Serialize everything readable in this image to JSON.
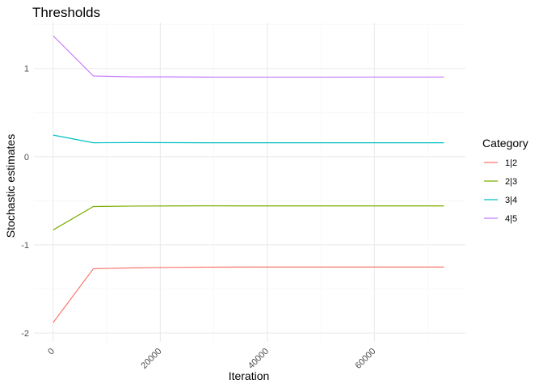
{
  "chart_data": {
    "type": "line",
    "title": "Thresholds",
    "xlabel": "Iteration",
    "ylabel": "Stochastic estimates",
    "xlim": [
      -3600,
      77000
    ],
    "ylim": [
      -2.1,
      1.52
    ],
    "x_ticks": [
      0,
      20000,
      40000,
      60000
    ],
    "x_minor_ticks": [
      10000,
      30000,
      50000,
      70000
    ],
    "y_ticks": [
      -2,
      -1,
      0,
      1
    ],
    "y_minor_ticks": [
      -1.5,
      -0.5,
      0.5,
      1.5
    ],
    "x_tick_labels": [
      "0",
      "20000",
      "40000",
      "60000"
    ],
    "y_tick_labels": [
      "-2",
      "-1",
      "0",
      "1"
    ],
    "grid": true,
    "legend": {
      "title": "Category",
      "position": "right"
    },
    "x": [
      0,
      7500,
      15000,
      22500,
      30000,
      37500,
      45000,
      52500,
      60000,
      67500,
      73000
    ],
    "series": [
      {
        "name": "1|2",
        "color": "#F8766D",
        "values": [
          -1.88,
          -1.27,
          -1.26,
          -1.255,
          -1.252,
          -1.251,
          -1.251,
          -1.251,
          -1.251,
          -1.251,
          -1.251
        ]
      },
      {
        "name": "2|3",
        "color": "#7CAE00",
        "values": [
          -0.83,
          -0.565,
          -0.56,
          -0.558,
          -0.557,
          -0.558,
          -0.558,
          -0.558,
          -0.558,
          -0.558,
          -0.558
        ]
      },
      {
        "name": "3|4",
        "color": "#00BFC4",
        "values": [
          0.245,
          0.158,
          0.16,
          0.159,
          0.158,
          0.158,
          0.158,
          0.158,
          0.158,
          0.158,
          0.158
        ]
      },
      {
        "name": "4|5",
        "color": "#C77CFF",
        "values": [
          1.37,
          0.915,
          0.905,
          0.905,
          0.902,
          0.902,
          0.902,
          0.902,
          0.903,
          0.903,
          0.903
        ]
      }
    ]
  }
}
